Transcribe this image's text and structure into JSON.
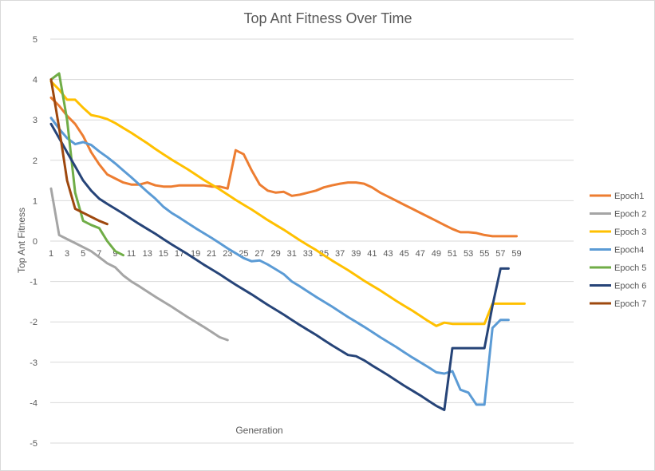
{
  "chart_data": {
    "type": "line",
    "title": "Top Ant Fitness Over Time",
    "xlabel": "Generation",
    "ylabel": "Top Ant Fitness",
    "ylim": [
      -5,
      5
    ],
    "xlim": [
      1,
      59
    ],
    "y_ticks": [
      "5",
      "4",
      "3",
      "2",
      "1",
      "0",
      "-1",
      "-2",
      "-3",
      "-4",
      "-5"
    ],
    "x_ticks": [
      "1",
      "3",
      "5",
      "7",
      "9",
      "11",
      "13",
      "15",
      "17",
      "19",
      "21",
      "23",
      "25",
      "27",
      "29",
      "31",
      "33",
      "35",
      "37",
      "39",
      "41",
      "43",
      "45",
      "47",
      "49",
      "51",
      "53",
      "55",
      "57",
      "59"
    ],
    "grid": true,
    "legend_position": "right",
    "series": [
      {
        "name": "Epoch1",
        "color": "#ED7D31",
        "points": [
          [
            1,
            3.55
          ],
          [
            2,
            3.35
          ],
          [
            3,
            3.1
          ],
          [
            4,
            2.9
          ],
          [
            5,
            2.6
          ],
          [
            6,
            2.2
          ],
          [
            7,
            1.9
          ],
          [
            8,
            1.65
          ],
          [
            9,
            1.55
          ],
          [
            10,
            1.45
          ],
          [
            11,
            1.4
          ],
          [
            12,
            1.4
          ],
          [
            13,
            1.45
          ],
          [
            14,
            1.38
          ],
          [
            15,
            1.35
          ],
          [
            16,
            1.35
          ],
          [
            17,
            1.38
          ],
          [
            18,
            1.38
          ],
          [
            19,
            1.38
          ],
          [
            20,
            1.38
          ],
          [
            21,
            1.35
          ],
          [
            22,
            1.35
          ],
          [
            23,
            1.3
          ],
          [
            24,
            2.25
          ],
          [
            25,
            2.15
          ],
          [
            26,
            1.75
          ],
          [
            27,
            1.4
          ],
          [
            28,
            1.25
          ],
          [
            29,
            1.2
          ],
          [
            30,
            1.22
          ],
          [
            31,
            1.12
          ],
          [
            32,
            1.15
          ],
          [
            33,
            1.2
          ],
          [
            34,
            1.25
          ],
          [
            35,
            1.33
          ],
          [
            36,
            1.38
          ],
          [
            37,
            1.42
          ],
          [
            38,
            1.45
          ],
          [
            39,
            1.45
          ],
          [
            40,
            1.42
          ],
          [
            41,
            1.33
          ],
          [
            42,
            1.2
          ],
          [
            43,
            1.1
          ],
          [
            44,
            1.0
          ],
          [
            45,
            0.9
          ],
          [
            46,
            0.8
          ],
          [
            47,
            0.7
          ],
          [
            48,
            0.6
          ],
          [
            49,
            0.5
          ],
          [
            50,
            0.4
          ],
          [
            51,
            0.3
          ],
          [
            52,
            0.22
          ],
          [
            53,
            0.22
          ],
          [
            54,
            0.2
          ],
          [
            55,
            0.15
          ],
          [
            56,
            0.12
          ],
          [
            57,
            0.12
          ],
          [
            58,
            0.12
          ],
          [
            59,
            0.12
          ]
        ]
      },
      {
        "name": "Epoch 2",
        "color": "#A5A5A5",
        "points": [
          [
            1,
            1.3
          ],
          [
            2,
            0.15
          ],
          [
            3,
            0.05
          ],
          [
            4,
            -0.05
          ],
          [
            5,
            -0.15
          ],
          [
            6,
            -0.25
          ],
          [
            7,
            -0.4
          ],
          [
            8,
            -0.55
          ],
          [
            9,
            -0.65
          ],
          [
            10,
            -0.85
          ],
          [
            11,
            -1.0
          ],
          [
            12,
            -1.12
          ],
          [
            13,
            -1.25
          ],
          [
            14,
            -1.38
          ],
          [
            15,
            -1.5
          ],
          [
            16,
            -1.62
          ],
          [
            17,
            -1.75
          ],
          [
            18,
            -1.88
          ],
          [
            19,
            -2.0
          ],
          [
            20,
            -2.12
          ],
          [
            21,
            -2.25
          ],
          [
            22,
            -2.38
          ],
          [
            23,
            -2.45
          ]
        ]
      },
      {
        "name": "Epoch 3",
        "color": "#FFC000",
        "points": [
          [
            1,
            3.95
          ],
          [
            2,
            3.75
          ],
          [
            3,
            3.5
          ],
          [
            4,
            3.5
          ],
          [
            5,
            3.3
          ],
          [
            6,
            3.12
          ],
          [
            7,
            3.08
          ],
          [
            8,
            3.02
          ],
          [
            9,
            2.92
          ],
          [
            10,
            2.8
          ],
          [
            11,
            2.68
          ],
          [
            12,
            2.55
          ],
          [
            13,
            2.42
          ],
          [
            14,
            2.28
          ],
          [
            15,
            2.15
          ],
          [
            16,
            2.02
          ],
          [
            17,
            1.9
          ],
          [
            18,
            1.78
          ],
          [
            19,
            1.65
          ],
          [
            20,
            1.52
          ],
          [
            21,
            1.4
          ],
          [
            22,
            1.28
          ],
          [
            23,
            1.15
          ],
          [
            24,
            1.02
          ],
          [
            25,
            0.9
          ],
          [
            26,
            0.78
          ],
          [
            27,
            0.65
          ],
          [
            28,
            0.52
          ],
          [
            29,
            0.4
          ],
          [
            30,
            0.28
          ],
          [
            31,
            0.15
          ],
          [
            32,
            0.02
          ],
          [
            33,
            -0.1
          ],
          [
            34,
            -0.22
          ],
          [
            35,
            -0.35
          ],
          [
            36,
            -0.48
          ],
          [
            37,
            -0.6
          ],
          [
            38,
            -0.72
          ],
          [
            39,
            -0.85
          ],
          [
            40,
            -0.98
          ],
          [
            41,
            -1.1
          ],
          [
            42,
            -1.22
          ],
          [
            43,
            -1.35
          ],
          [
            44,
            -1.48
          ],
          [
            45,
            -1.6
          ],
          [
            46,
            -1.72
          ],
          [
            47,
            -1.85
          ],
          [
            48,
            -1.98
          ],
          [
            49,
            -2.1
          ],
          [
            50,
            -2.02
          ],
          [
            51,
            -2.05
          ],
          [
            52,
            -2.05
          ],
          [
            53,
            -2.05
          ],
          [
            54,
            -2.05
          ],
          [
            55,
            -2.05
          ],
          [
            56,
            -1.55
          ],
          [
            57,
            -1.55
          ],
          [
            58,
            -1.55
          ],
          [
            59,
            -1.55
          ],
          [
            60,
            -1.55
          ]
        ]
      },
      {
        "name": "Epoch4",
        "color": "#5B9BD5",
        "points": [
          [
            1,
            3.05
          ],
          [
            2,
            2.78
          ],
          [
            3,
            2.55
          ],
          [
            4,
            2.4
          ],
          [
            5,
            2.45
          ],
          [
            6,
            2.38
          ],
          [
            7,
            2.22
          ],
          [
            8,
            2.08
          ],
          [
            9,
            1.92
          ],
          [
            10,
            1.75
          ],
          [
            11,
            1.58
          ],
          [
            12,
            1.4
          ],
          [
            13,
            1.22
          ],
          [
            14,
            1.05
          ],
          [
            15,
            0.85
          ],
          [
            16,
            0.7
          ],
          [
            17,
            0.58
          ],
          [
            18,
            0.45
          ],
          [
            19,
            0.32
          ],
          [
            20,
            0.2
          ],
          [
            21,
            0.08
          ],
          [
            22,
            -0.05
          ],
          [
            23,
            -0.18
          ],
          [
            24,
            -0.3
          ],
          [
            25,
            -0.42
          ],
          [
            26,
            -0.5
          ],
          [
            27,
            -0.48
          ],
          [
            28,
            -0.58
          ],
          [
            29,
            -0.7
          ],
          [
            30,
            -0.82
          ],
          [
            31,
            -1.0
          ],
          [
            32,
            -1.12
          ],
          [
            33,
            -1.25
          ],
          [
            34,
            -1.38
          ],
          [
            35,
            -1.5
          ],
          [
            36,
            -1.62
          ],
          [
            37,
            -1.75
          ],
          [
            38,
            -1.88
          ],
          [
            39,
            -2.0
          ],
          [
            40,
            -2.12
          ],
          [
            41,
            -2.25
          ],
          [
            42,
            -2.38
          ],
          [
            43,
            -2.5
          ],
          [
            44,
            -2.62
          ],
          [
            45,
            -2.75
          ],
          [
            46,
            -2.88
          ],
          [
            47,
            -3.0
          ],
          [
            48,
            -3.12
          ],
          [
            49,
            -3.25
          ],
          [
            50,
            -3.28
          ],
          [
            51,
            -3.22
          ],
          [
            52,
            -3.68
          ],
          [
            53,
            -3.75
          ],
          [
            54,
            -4.05
          ],
          [
            55,
            -4.05
          ],
          [
            56,
            -2.15
          ],
          [
            57,
            -1.95
          ],
          [
            58,
            -1.95
          ]
        ]
      },
      {
        "name": "Epoch 5",
        "color": "#70AD47",
        "points": [
          [
            1,
            4.0
          ],
          [
            2,
            4.15
          ],
          [
            3,
            3.0
          ],
          [
            4,
            1.2
          ],
          [
            5,
            0.5
          ],
          [
            6,
            0.4
          ],
          [
            7,
            0.32
          ],
          [
            8,
            0.0
          ],
          [
            9,
            -0.25
          ],
          [
            10,
            -0.35
          ]
        ]
      },
      {
        "name": "Epoch 6",
        "color": "#264478",
        "points": [
          [
            1,
            2.9
          ],
          [
            2,
            2.55
          ],
          [
            3,
            2.2
          ],
          [
            4,
            1.85
          ],
          [
            5,
            1.5
          ],
          [
            6,
            1.25
          ],
          [
            7,
            1.05
          ],
          [
            8,
            0.92
          ],
          [
            9,
            0.8
          ],
          [
            10,
            0.68
          ],
          [
            11,
            0.55
          ],
          [
            12,
            0.42
          ],
          [
            13,
            0.3
          ],
          [
            14,
            0.18
          ],
          [
            15,
            0.05
          ],
          [
            16,
            -0.08
          ],
          [
            17,
            -0.2
          ],
          [
            18,
            -0.32
          ],
          [
            19,
            -0.45
          ],
          [
            20,
            -0.58
          ],
          [
            21,
            -0.7
          ],
          [
            22,
            -0.82
          ],
          [
            23,
            -0.95
          ],
          [
            24,
            -1.08
          ],
          [
            25,
            -1.2
          ],
          [
            26,
            -1.32
          ],
          [
            27,
            -1.45
          ],
          [
            28,
            -1.58
          ],
          [
            29,
            -1.7
          ],
          [
            30,
            -1.82
          ],
          [
            31,
            -1.95
          ],
          [
            32,
            -2.08
          ],
          [
            33,
            -2.2
          ],
          [
            34,
            -2.32
          ],
          [
            35,
            -2.45
          ],
          [
            36,
            -2.58
          ],
          [
            37,
            -2.7
          ],
          [
            38,
            -2.82
          ],
          [
            39,
            -2.85
          ],
          [
            40,
            -2.95
          ],
          [
            41,
            -3.08
          ],
          [
            42,
            -3.2
          ],
          [
            43,
            -3.32
          ],
          [
            44,
            -3.45
          ],
          [
            45,
            -3.58
          ],
          [
            46,
            -3.7
          ],
          [
            47,
            -3.82
          ],
          [
            48,
            -3.95
          ],
          [
            49,
            -4.08
          ],
          [
            50,
            -4.18
          ],
          [
            51,
            -2.65
          ],
          [
            52,
            -2.65
          ],
          [
            53,
            -2.65
          ],
          [
            54,
            -2.65
          ],
          [
            55,
            -2.65
          ],
          [
            56,
            -1.6
          ],
          [
            57,
            -0.68
          ],
          [
            58,
            -0.68
          ]
        ]
      },
      {
        "name": "Epoch 7",
        "color": "#9E480E",
        "points": [
          [
            1,
            4.0
          ],
          [
            2,
            2.8
          ],
          [
            3,
            1.5
          ],
          [
            4,
            0.8
          ],
          [
            5,
            0.7
          ],
          [
            6,
            0.6
          ],
          [
            7,
            0.5
          ],
          [
            8,
            0.42
          ]
        ]
      }
    ]
  }
}
